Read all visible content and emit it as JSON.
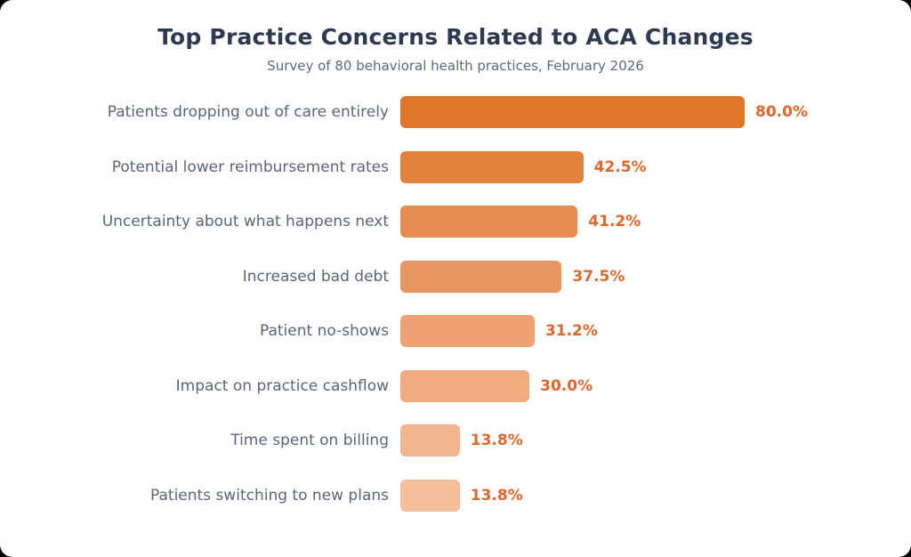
{
  "page": {
    "outer_background": "#000000",
    "card_background": "#ffffff"
  },
  "chart_data": {
    "type": "bar",
    "orientation": "horizontal",
    "title": "Top Practice Concerns Related to ACA Changes",
    "subtitle": "Survey of 80 behavioral health practices, February 2026",
    "categories": [
      "Patients dropping out of care entirely",
      "Potential lower reimbursement rates",
      "Uncertainty about what happens next",
      "Increased bad debt",
      "Patient no-shows",
      "Impact on practice cashflow",
      "Time spent on billing",
      "Patients switching to new plans"
    ],
    "values": [
      80.0,
      42.5,
      41.2,
      37.5,
      31.2,
      30.0,
      13.8,
      13.8
    ],
    "value_labels": [
      "80.0%",
      "42.5%",
      "41.2%",
      "37.5%",
      "31.2%",
      "30.0%",
      "13.8%",
      "13.8%"
    ],
    "xlim": [
      0,
      80
    ],
    "grid": false,
    "legend": false,
    "axes_shown": false,
    "bar_colors": [
      "#DF7529",
      "#E4813C",
      "#E78C4F",
      "#EA9660",
      "#EDA171",
      "#F0AB81",
      "#F2B590",
      "#F4BF9D"
    ],
    "colors": {
      "title": "#2D3A50",
      "subtitle": "#5E6A7A",
      "category_label": "#5A6578",
      "value_label": "#E0662B"
    }
  }
}
